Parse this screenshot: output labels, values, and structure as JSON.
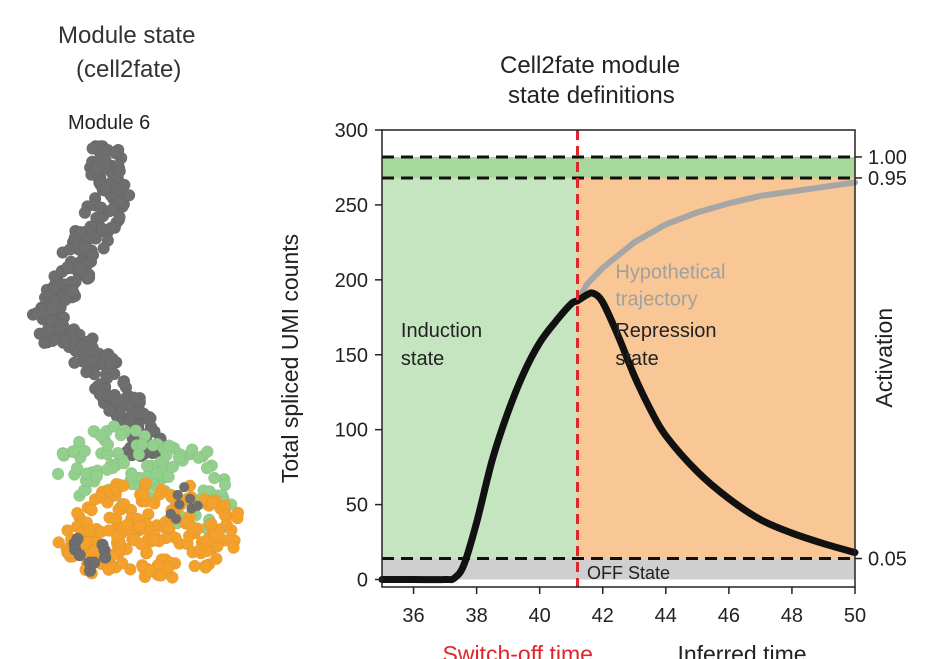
{
  "left_panel": {
    "title_line1": "Module state",
    "title_line2": "(cell2fate)",
    "module_label": "Module 6",
    "colors": {
      "gray": "#6e6e6e",
      "orange": "#f4a12c",
      "green": "#93cf8d"
    }
  },
  "chart_data": {
    "type": "line",
    "title_line1": "Cell2fate module",
    "title_line2": "state definitions",
    "xlabel": "Inferred time",
    "ylabel": "Total spliced UMI counts",
    "y2label": "Activation",
    "xlim": [
      35,
      50
    ],
    "ylim": [
      -5,
      300
    ],
    "x_ticks": [
      36,
      38,
      40,
      42,
      44,
      46,
      48,
      50
    ],
    "y_ticks": [
      0,
      50,
      100,
      150,
      200,
      250,
      300
    ],
    "right_ticks": [
      {
        "y": 282,
        "label": "1.00"
      },
      {
        "y": 268,
        "label": "0.95"
      },
      {
        "y": 14,
        "label": "0.05"
      }
    ],
    "switch_off_time": 41.2,
    "switch_off_label": "Switch-off time",
    "thresholds": [
      282,
      268,
      14
    ],
    "regions": [
      {
        "name": "Induction state",
        "label_line1": "Induction",
        "label_line2": "state",
        "x": [
          35,
          41.2
        ],
        "y": [
          14,
          268
        ],
        "color": "#c5e5c1"
      },
      {
        "name": "Repression state",
        "label_line1": "Repression",
        "label_line2": "state",
        "x": [
          41.2,
          50
        ],
        "y": [
          14,
          268
        ],
        "color": "#f9c795"
      },
      {
        "name": "Full activation band",
        "x": [
          35,
          50
        ],
        "y": [
          268,
          282
        ],
        "color": "#a8d99c"
      },
      {
        "name": "OFF State",
        "label": "OFF State",
        "x": [
          35,
          50
        ],
        "y": [
          0,
          14
        ],
        "color": "#cfcfcf"
      }
    ],
    "series": [
      {
        "name": "Observed trajectory",
        "color": "#111111",
        "x": [
          35,
          36,
          37,
          37.3,
          37.6,
          38,
          38.5,
          39,
          39.5,
          40,
          40.5,
          41,
          41.2,
          41.5,
          41.7,
          42,
          42.5,
          43,
          43.5,
          44,
          45,
          46,
          47,
          48,
          49,
          50
        ],
        "y": [
          0,
          0,
          0,
          1,
          10,
          38,
          80,
          112,
          138,
          158,
          172,
          184,
          186,
          190,
          191,
          185,
          162,
          136,
          114,
          96,
          72,
          54,
          40,
          31,
          24,
          18
        ]
      },
      {
        "name": "Hypothetical trajectory",
        "label_line1": "Hypothetical",
        "label_line2": "trajectory",
        "color": "#a6a6a6",
        "x": [
          41.2,
          41.5,
          42,
          43,
          44,
          45,
          46,
          47,
          48,
          49,
          50
        ],
        "y": [
          186,
          197,
          208,
          225,
          237,
          245,
          251,
          256,
          259,
          262,
          265
        ]
      }
    ]
  }
}
